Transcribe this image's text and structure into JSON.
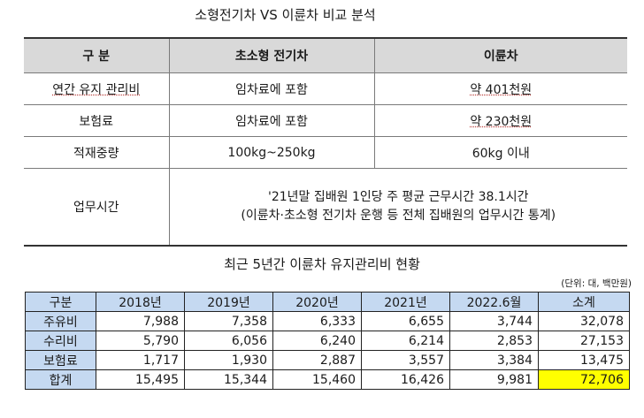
{
  "title1": "소형전기차 VS 이륜차 비교 분석",
  "comparison": {
    "headers": [
      "구 분",
      "초소형 전기차",
      "이륜차"
    ],
    "rows": [
      {
        "label": "연간 유지 관리비",
        "ev": "임차료에 포함",
        "moto": "약 401천원"
      },
      {
        "label": "보험료",
        "ev": "임차료에 포함",
        "moto": "약 230천원"
      },
      {
        "label": "적재중량",
        "ev": "100kg~250kg",
        "moto": "60kg 이내"
      }
    ],
    "work": {
      "label": "업무시간",
      "line1": "'21년말 집배원 1인당 주 평균 근무시간 38.1시간",
      "line2": "(이륜차·초소형 전기차 운행 등 전체 집배원의 업무시간 통계)"
    }
  },
  "title2": "최근 5년간 이륜차 유지관리비 현황",
  "unit_note": "(단위: 대, 백만원)",
  "costs": {
    "headers": [
      "구분",
      "2018년",
      "2019년",
      "2020년",
      "2021년",
      "2022.6월",
      "소계"
    ],
    "rows": [
      {
        "label": "주유비",
        "values": [
          "7,988",
          "7,358",
          "6,333",
          "6,655",
          "3,744",
          "32,078"
        ]
      },
      {
        "label": "수리비",
        "values": [
          "5,790",
          "6,056",
          "6,240",
          "6,214",
          "2,853",
          "27,153"
        ]
      },
      {
        "label": "보험료",
        "values": [
          "1,717",
          "1,930",
          "2,887",
          "3,557",
          "3,384",
          "13,475"
        ]
      },
      {
        "label": "합계",
        "values": [
          "15,495",
          "15,344",
          "15,460",
          "16,426",
          "9,981",
          "72,706"
        ]
      }
    ],
    "highlight_color": "#ffff00"
  }
}
